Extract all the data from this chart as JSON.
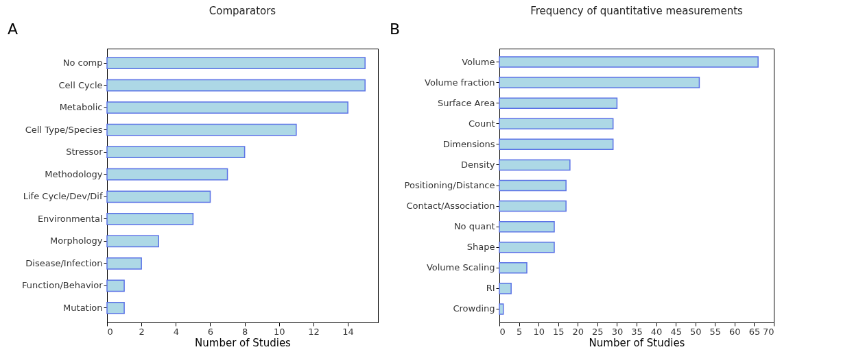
{
  "chart_data": [
    {
      "type": "bar",
      "orientation": "horizontal",
      "title": "Comparators",
      "xlabel": "Number of Studies",
      "annotations": [
        "A"
      ],
      "categories": [
        "No comp",
        "Cell Cycle",
        "Metabolic",
        "Cell Type/Species",
        "Stressor",
        "Methodology",
        "Life Cycle/Dev/Dif",
        "Environmental",
        "Morphology",
        "Disease/Infection",
        "Function/Behavior",
        "Mutation"
      ],
      "values": [
        15,
        15,
        14,
        11,
        8,
        7,
        6,
        5,
        3,
        2,
        1,
        1
      ],
      "color": "#add8e6",
      "xlim": [
        0,
        15.75
      ],
      "xticks": [
        0,
        2,
        4,
        6,
        8,
        10,
        12,
        14
      ]
    },
    {
      "type": "bar",
      "orientation": "horizontal",
      "title": "Frequency of quantitative measurements",
      "xlabel": "Number of Studies",
      "annotations": [
        "B"
      ],
      "categories": [
        "Volume",
        "Volume fraction",
        "Surface Area",
        "Count",
        "Dimensions",
        "Density",
        "Positioning/Distance",
        "Contact/Association",
        "No quant",
        "Shape",
        "Volume Scaling",
        "RI",
        "Crowding"
      ],
      "values": [
        66,
        51,
        30,
        29,
        29,
        18,
        17,
        17,
        14,
        14,
        7,
        3,
        1
      ],
      "color": "#add8e6",
      "xlim": [
        0,
        70
      ],
      "xticks": [
        0,
        5,
        10,
        15,
        20,
        25,
        30,
        35,
        40,
        45,
        50,
        55,
        60,
        65,
        70
      ]
    }
  ]
}
